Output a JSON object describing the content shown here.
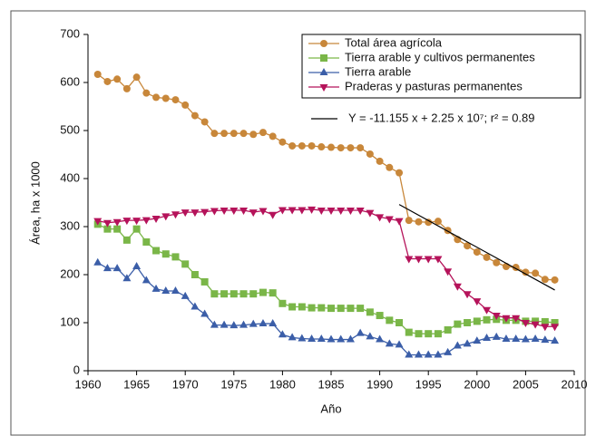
{
  "chart_data": {
    "type": "line",
    "ylabel": "Área, ha x 1000",
    "xlabel": "Año",
    "xlim": [
      1960,
      2010
    ],
    "xticks": [
      1960,
      1965,
      1970,
      1975,
      1980,
      1985,
      1990,
      1995,
      2000,
      2005,
      2010
    ],
    "ylim": [
      0,
      700
    ],
    "yticks": [
      0,
      100,
      200,
      300,
      400,
      500,
      600,
      700
    ],
    "x": [
      1961,
      1962,
      1963,
      1964,
      1965,
      1966,
      1967,
      1968,
      1969,
      1970,
      1971,
      1972,
      1973,
      1974,
      1975,
      1976,
      1977,
      1978,
      1979,
      1980,
      1981,
      1982,
      1983,
      1984,
      1985,
      1986,
      1987,
      1988,
      1989,
      1990,
      1991,
      1992,
      1993,
      1994,
      1995,
      1996,
      1997,
      1998,
      1999,
      2000,
      2001,
      2002,
      2003,
      2004,
      2005,
      2006,
      2007,
      2008
    ],
    "series": [
      {
        "name": "Total área agrícola",
        "color": "#c8873a",
        "marker": "circle",
        "values": [
          617,
          602,
          607,
          587,
          611,
          578,
          569,
          567,
          564,
          553,
          531,
          518,
          494,
          494,
          494,
          494,
          492,
          496,
          488,
          476,
          468,
          468,
          468,
          466,
          465,
          464,
          464,
          464,
          451,
          436,
          423,
          412,
          313,
          310,
          309,
          311,
          292,
          273,
          260,
          247,
          236,
          225,
          217,
          215,
          205,
          203,
          190,
          189
        ]
      },
      {
        "name": "Tierra arable y cultivos permanentes",
        "color": "#7ab648",
        "marker": "square",
        "values": [
          305,
          295,
          295,
          272,
          295,
          268,
          250,
          243,
          237,
          222,
          200,
          185,
          160,
          160,
          160,
          160,
          160,
          163,
          162,
          140,
          133,
          133,
          131,
          131,
          130,
          130,
          130,
          130,
          122,
          115,
          105,
          100,
          80,
          77,
          77,
          77,
          85,
          97,
          100,
          103,
          106,
          107,
          105,
          105,
          103,
          103,
          102,
          100
        ]
      },
      {
        "name": "Tierra arable",
        "color": "#3b5ea8",
        "marker": "triangle-up",
        "values": [
          225,
          213,
          213,
          192,
          217,
          188,
          170,
          166,
          166,
          155,
          133,
          118,
          95,
          95,
          94,
          95,
          97,
          98,
          98,
          75,
          69,
          67,
          66,
          66,
          65,
          65,
          65,
          78,
          71,
          65,
          56,
          54,
          33,
          33,
          33,
          33,
          38,
          52,
          56,
          62,
          68,
          70,
          66,
          66,
          65,
          66,
          64,
          62
        ]
      },
      {
        "name": "Praderas y pasturas permanentes",
        "color": "#b5135a",
        "marker": "triangle-down",
        "values": [
          312,
          308,
          310,
          313,
          313,
          314,
          317,
          322,
          326,
          330,
          330,
          331,
          333,
          334,
          334,
          334,
          330,
          333,
          325,
          335,
          335,
          335,
          336,
          334,
          334,
          334,
          334,
          334,
          329,
          320,
          316,
          312,
          233,
          233,
          233,
          233,
          207,
          176,
          160,
          145,
          127,
          115,
          110,
          110,
          100,
          97,
          92,
          92
        ]
      }
    ],
    "trend": {
      "label": "Y = -11.155 x + 2.25 x 10⁷; r² = 0.89",
      "color": "#000000",
      "x": [
        1992,
        2008
      ],
      "values": [
        346,
        168
      ]
    }
  }
}
